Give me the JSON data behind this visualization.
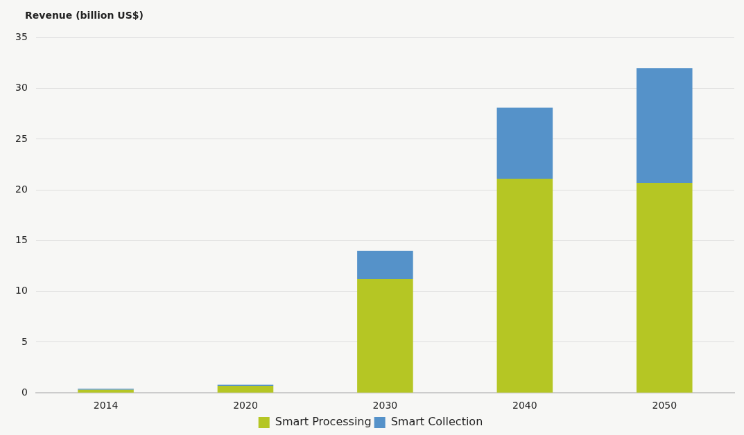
{
  "chart_data": {
    "type": "bar",
    "ylabel": "Revenue (billion US$)",
    "categories": [
      "2014",
      "2020",
      "2030",
      "2040",
      "2050"
    ],
    "stacked": true,
    "series": [
      {
        "name": "Smart Processing",
        "color": "#b5c624",
        "values": [
          0.3,
          0.7,
          11.2,
          21.1,
          20.7
        ]
      },
      {
        "name": "Smart Collection",
        "color": "#5592c9",
        "values": [
          0.1,
          0.1,
          2.8,
          7.0,
          11.3
        ]
      }
    ],
    "ylim": [
      0,
      35
    ],
    "yticks": [
      0,
      5,
      10,
      15,
      20,
      25,
      30,
      35
    ],
    "grid": "y",
    "legend": "bottom"
  }
}
